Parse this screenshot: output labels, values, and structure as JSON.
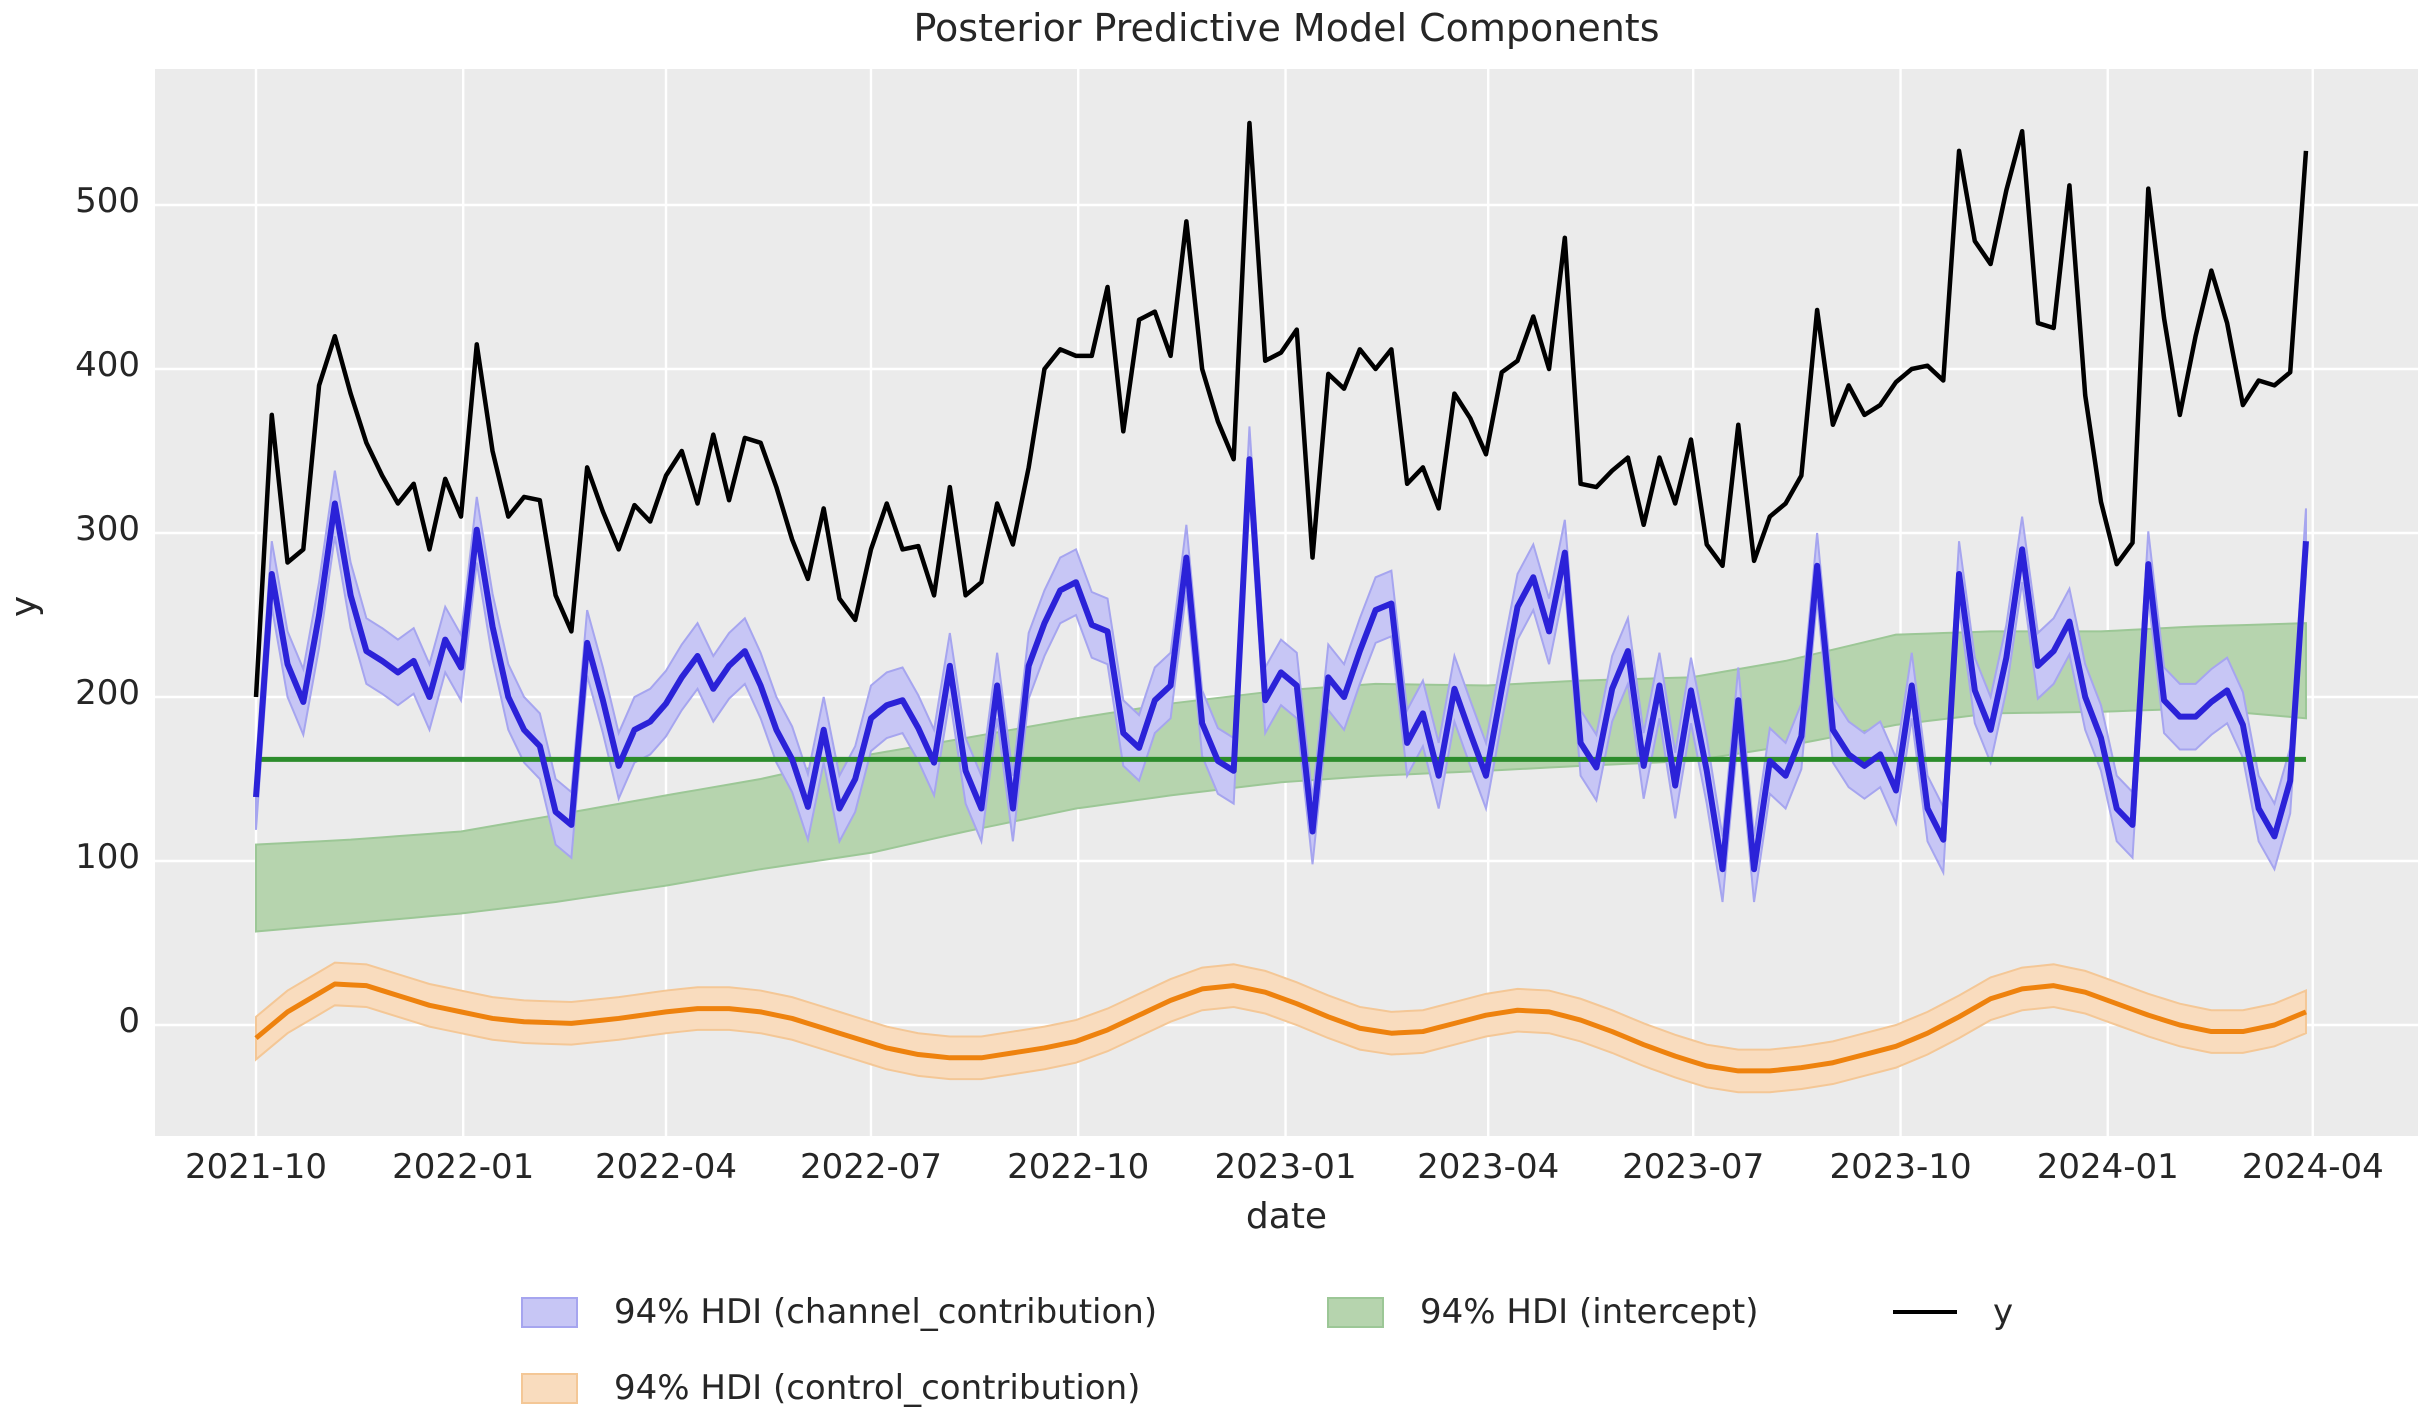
{
  "title": "Posterior Predictive Model Components",
  "xlabel": "date",
  "ylabel": "y",
  "legend": {
    "items": [
      {
        "key": "channel_contribution",
        "label": "94% HDI (channel_contribution)",
        "swatch": "patch"
      },
      {
        "key": "intercept",
        "label": "94% HDI (intercept)",
        "swatch": "patch"
      },
      {
        "key": "y",
        "label": "y",
        "swatch": "line"
      },
      {
        "key": "control_contribution",
        "label": "94% HDI (control_contribution)",
        "swatch": "patch"
      }
    ]
  },
  "chart_data": {
    "type": "line",
    "title": "Posterior Predictive Model Components",
    "xlabel": "date",
    "ylabel": "y",
    "grid": true,
    "legend_position": "lower center",
    "x_start_date": "2021-10-01",
    "x_freq_days": 7,
    "n_points": 131,
    "ylim": [
      -68,
      583
    ],
    "y_ticks": [
      0,
      100,
      200,
      300,
      400,
      500
    ],
    "x_ticks": [
      {
        "label": "2021-10",
        "week": 0
      },
      {
        "label": "2022-01",
        "week": 13.14
      },
      {
        "label": "2022-04",
        "week": 26.0
      },
      {
        "label": "2022-07",
        "week": 39.0
      },
      {
        "label": "2022-10",
        "week": 52.14
      },
      {
        "label": "2023-01",
        "week": 65.29
      },
      {
        "label": "2023-04",
        "week": 78.14
      },
      {
        "label": "2023-07",
        "week": 91.14
      },
      {
        "label": "2023-10",
        "week": 104.29
      },
      {
        "label": "2024-01",
        "week": 117.43
      },
      {
        "label": "2024-04",
        "week": 130.43
      }
    ],
    "series": {
      "y": {
        "label": "y",
        "color": "#000000",
        "values": [
          200,
          372,
          282,
          290,
          390,
          420,
          385,
          355,
          335,
          318,
          330,
          290,
          333,
          310,
          415,
          350,
          310,
          322,
          320,
          262,
          240,
          340,
          313,
          290,
          317,
          307,
          335,
          350,
          318,
          360,
          320,
          358,
          355,
          328,
          296,
          272,
          315,
          260,
          247,
          290,
          318,
          290,
          292,
          262,
          328,
          262,
          270,
          318,
          293,
          340,
          400,
          412,
          408,
          408,
          450,
          362,
          430,
          435,
          408,
          490,
          400,
          368,
          345,
          550,
          405,
          410,
          424,
          285,
          397,
          388,
          412,
          400,
          412,
          330,
          340,
          315,
          385,
          370,
          348,
          398,
          405,
          432,
          400,
          480,
          330,
          328,
          338,
          346,
          305,
          346,
          318,
          357,
          293,
          280,
          366,
          283,
          310,
          318,
          335,
          436,
          366,
          390,
          372,
          378,
          392,
          400,
          402,
          393,
          533,
          478,
          464,
          509,
          545,
          428,
          425,
          512,
          384,
          319,
          281,
          294,
          510,
          431,
          372,
          420,
          460,
          428,
          378,
          393,
          390,
          398,
          533
        ]
      },
      "channel_contribution": {
        "label": "94% HDI (channel_contribution)",
        "line_color": "#2b22d8",
        "band_fill": "#c7c6f5",
        "band_edge": "#a6a5ef",
        "hdi_halfwidth": 20,
        "mean": [
          139,
          275,
          220,
          197,
          250,
          318,
          262,
          228,
          222,
          215,
          222,
          200,
          235,
          218,
          302,
          243,
          200,
          180,
          170,
          130,
          122,
          233,
          198,
          158,
          180,
          185,
          196,
          212,
          225,
          205,
          219,
          228,
          207,
          180,
          162,
          133,
          180,
          132,
          150,
          187,
          195,
          198,
          181,
          160,
          219,
          155,
          132,
          207,
          132,
          219,
          245,
          265,
          270,
          244,
          240,
          178,
          169,
          198,
          207,
          285,
          184,
          161,
          155,
          345,
          198,
          215,
          207,
          118,
          212,
          200,
          228,
          253,
          257,
          172,
          190,
          152,
          205,
          178,
          152,
          205,
          255,
          273,
          240,
          288,
          172,
          157,
          205,
          228,
          158,
          207,
          146,
          204,
          155,
          95,
          198,
          95,
          161,
          152,
          176,
          280,
          180,
          165,
          158,
          165,
          143,
          207,
          132,
          113,
          275,
          204,
          180,
          224,
          290,
          219,
          228,
          246,
          200,
          175,
          132,
          122,
          281,
          198,
          188,
          188,
          197,
          204,
          183,
          132,
          115,
          149,
          295
        ]
      },
      "intercept": {
        "label": "94% HDI (intercept)",
        "line_color": "#2c8c2c",
        "band_fill": "#b6d4ae",
        "band_edge": "#9cc796",
        "mean_constant": 162,
        "hdi_anchors": [
          [
            0,
            57,
            110
          ],
          [
            6,
            62,
            113
          ],
          [
            13,
            68,
            118
          ],
          [
            19,
            75,
            128
          ],
          [
            26,
            85,
            140
          ],
          [
            32,
            95,
            150
          ],
          [
            39,
            105,
            165
          ],
          [
            45,
            118,
            175
          ],
          [
            52,
            132,
            187
          ],
          [
            58,
            140,
            196
          ],
          [
            65,
            148,
            204
          ],
          [
            71,
            152,
            208
          ],
          [
            78,
            155,
            207
          ],
          [
            84,
            158,
            210
          ],
          [
            91,
            161,
            212
          ],
          [
            97,
            170,
            222
          ],
          [
            104,
            183,
            238
          ],
          [
            110,
            190,
            240
          ],
          [
            117,
            191,
            240
          ],
          [
            123,
            193,
            243
          ],
          [
            130,
            187,
            245
          ]
        ]
      },
      "control_contribution": {
        "label": "94% HDI (control_contribution)",
        "line_color": "#ee820e",
        "band_fill": "#f9dcbe",
        "band_edge": "#f4c796",
        "hdi_halfwidth": 13,
        "mean_anchors": [
          [
            0,
            -8
          ],
          [
            2,
            8
          ],
          [
            5,
            25
          ],
          [
            7,
            24
          ],
          [
            9,
            18
          ],
          [
            11,
            12
          ],
          [
            13,
            8
          ],
          [
            15,
            4
          ],
          [
            17,
            2
          ],
          [
            20,
            1
          ],
          [
            23,
            4
          ],
          [
            26,
            8
          ],
          [
            28,
            10
          ],
          [
            30,
            10
          ],
          [
            32,
            8
          ],
          [
            34,
            4
          ],
          [
            36,
            -2
          ],
          [
            38,
            -8
          ],
          [
            40,
            -14
          ],
          [
            42,
            -18
          ],
          [
            44,
            -20
          ],
          [
            46,
            -20
          ],
          [
            48,
            -17
          ],
          [
            50,
            -14
          ],
          [
            52,
            -10
          ],
          [
            54,
            -3
          ],
          [
            56,
            6
          ],
          [
            58,
            15
          ],
          [
            60,
            22
          ],
          [
            62,
            24
          ],
          [
            64,
            20
          ],
          [
            66,
            13
          ],
          [
            68,
            5
          ],
          [
            70,
            -2
          ],
          [
            72,
            -5
          ],
          [
            74,
            -4
          ],
          [
            76,
            1
          ],
          [
            78,
            6
          ],
          [
            80,
            9
          ],
          [
            82,
            8
          ],
          [
            84,
            3
          ],
          [
            86,
            -4
          ],
          [
            88,
            -12
          ],
          [
            90,
            -19
          ],
          [
            92,
            -25
          ],
          [
            94,
            -28
          ],
          [
            96,
            -28
          ],
          [
            98,
            -26
          ],
          [
            100,
            -23
          ],
          [
            102,
            -18
          ],
          [
            104,
            -13
          ],
          [
            106,
            -5
          ],
          [
            108,
            5
          ],
          [
            110,
            16
          ],
          [
            112,
            22
          ],
          [
            114,
            24
          ],
          [
            116,
            20
          ],
          [
            118,
            13
          ],
          [
            120,
            6
          ],
          [
            122,
            0
          ],
          [
            124,
            -4
          ],
          [
            126,
            -4
          ],
          [
            128,
            0
          ],
          [
            130,
            8
          ]
        ]
      }
    },
    "plot_style": {
      "background": "#ebebeb",
      "gridline_color": "#ffffff",
      "text_color": "#262626"
    }
  }
}
